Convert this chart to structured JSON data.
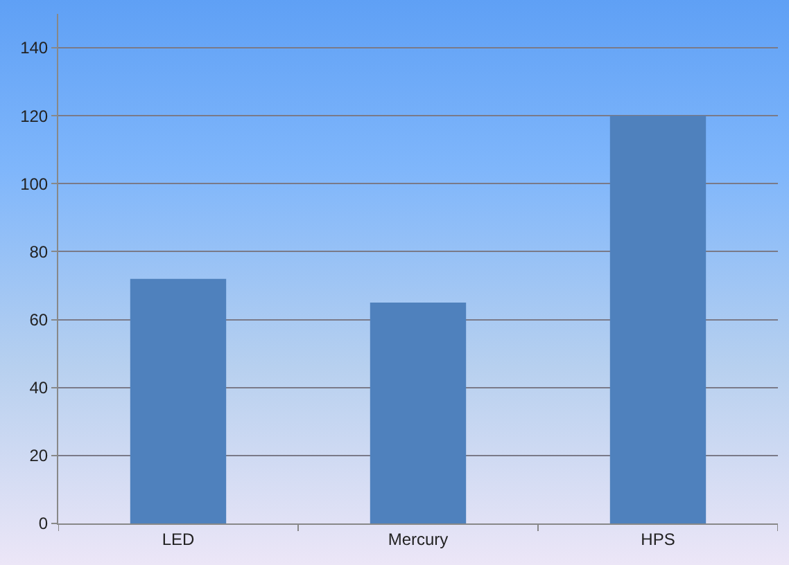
{
  "chart_data": {
    "type": "bar",
    "categories": [
      "LED",
      "Mercury",
      "HPS"
    ],
    "values": [
      72,
      65,
      120
    ],
    "color": "#4f81bd",
    "ylim": [
      0,
      150
    ],
    "yticks": [
      0,
      20,
      40,
      60,
      80,
      100,
      120,
      140
    ],
    "grid": "y"
  }
}
